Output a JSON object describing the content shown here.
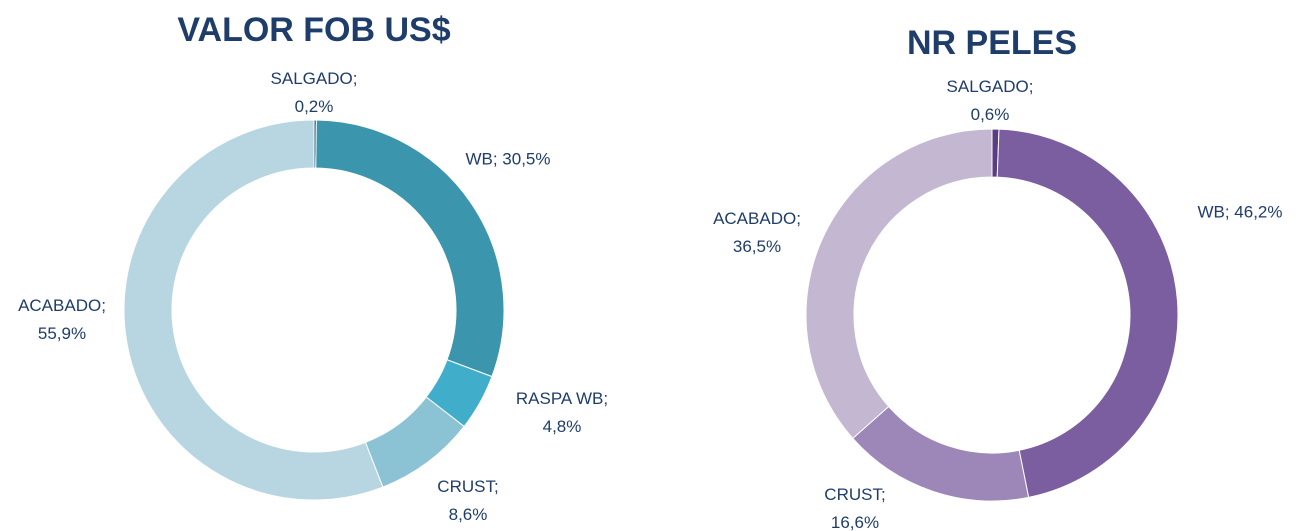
{
  "chart_data": [
    {
      "type": "donut",
      "title": "VALOR FOB US$",
      "values": [
        0.2,
        30.5,
        4.8,
        8.6,
        55.9
      ],
      "value_labels": [
        "SALGADO; 0,2%",
        "WB; 30,5%",
        "RASPA WB; 4,8%",
        "CRUST; 8,6%",
        "ACABADO; 55,9%"
      ],
      "colors": [
        "#1f5f7a",
        "#3a95ad",
        "#40aecb",
        "#8cc3d4",
        "#b8d6e2"
      ]
    },
    {
      "type": "donut",
      "title": "NR PELES",
      "values": [
        0.6,
        46.2,
        16.6,
        36.5
      ],
      "value_labels": [
        "SALGADO; 0,6%",
        "WB; 46,2%",
        "CRUST; 16,6%",
        "ACABADO; 36,5%"
      ],
      "colors": [
        "#5c3d84",
        "#7b5ea0",
        "#9d87b8",
        "#c3b7d2"
      ]
    }
  ]
}
